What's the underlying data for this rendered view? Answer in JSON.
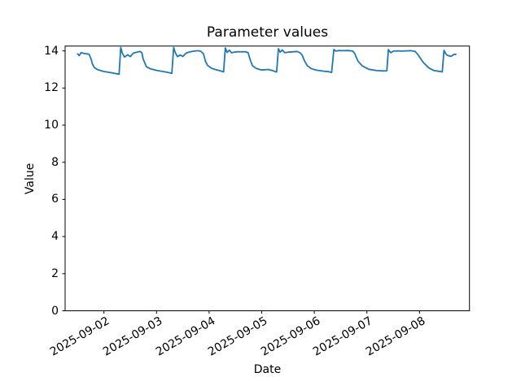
{
  "window": {
    "background": "#ffffff"
  },
  "chart": {
    "title": "Parameter values",
    "xlabel": "Date",
    "ylabel": "Value",
    "line_color": "#1f77b4",
    "axis_color": "#000000"
  },
  "chart_data": {
    "type": "line",
    "title": "Parameter values",
    "xlabel": "Date",
    "ylabel": "Value",
    "ylim": [
      0,
      14.26
    ],
    "y_ticks": [
      0,
      2,
      4,
      6,
      8,
      10,
      12,
      14
    ],
    "grid": false,
    "legend": false,
    "x_axis": {
      "unit": "hours since 2025-09-01 00:00",
      "tick_hours": [
        24,
        48,
        72,
        96,
        120,
        144,
        168
      ],
      "tick_labels": [
        "2025-09-02",
        "2025-09-03",
        "2025-09-04",
        "2025-09-05",
        "2025-09-06",
        "2025-09-07",
        "2025-09-08"
      ]
    },
    "series": [
      {
        "name": "Parameter values",
        "color": "#1f77b4",
        "points": [
          [
            12.0,
            13.84
          ],
          [
            12.7,
            13.75
          ],
          [
            13.6,
            13.91
          ],
          [
            14.6,
            13.87
          ],
          [
            15.8,
            13.85
          ],
          [
            17.2,
            13.82
          ],
          [
            18.0,
            13.6
          ],
          [
            18.8,
            13.28
          ],
          [
            19.6,
            13.1
          ],
          [
            21.0,
            13.0
          ],
          [
            22.5,
            12.94
          ],
          [
            24.0,
            12.89
          ],
          [
            26.0,
            12.85
          ],
          [
            28.0,
            12.81
          ],
          [
            29.7,
            12.77
          ],
          [
            30.9,
            12.75
          ],
          [
            31.65,
            14.18
          ],
          [
            32.4,
            13.88
          ],
          [
            33.4,
            13.67
          ],
          [
            34.9,
            13.79
          ],
          [
            36.0,
            13.69
          ],
          [
            37.5,
            13.89
          ],
          [
            39.0,
            13.93
          ],
          [
            40.5,
            13.97
          ],
          [
            41.3,
            13.9
          ],
          [
            41.9,
            13.55
          ],
          [
            43.4,
            13.15
          ],
          [
            45.3,
            13.03
          ],
          [
            48.0,
            12.95
          ],
          [
            50.9,
            12.89
          ],
          [
            52.7,
            12.85
          ],
          [
            55.0,
            12.79
          ],
          [
            55.8,
            14.18
          ],
          [
            56.6,
            13.9
          ],
          [
            57.6,
            13.69
          ],
          [
            58.8,
            13.78
          ],
          [
            60.0,
            13.7
          ],
          [
            61.5,
            13.88
          ],
          [
            63.0,
            13.94
          ],
          [
            64.6,
            13.98
          ],
          [
            67.0,
            14.01
          ],
          [
            68.3,
            13.97
          ],
          [
            69.4,
            13.85
          ],
          [
            70.3,
            13.45
          ],
          [
            71.3,
            13.22
          ],
          [
            73.2,
            13.06
          ],
          [
            75.0,
            12.99
          ],
          [
            77.0,
            12.93
          ],
          [
            78.6,
            12.87
          ],
          [
            79.4,
            14.16
          ],
          [
            80.2,
            13.92
          ],
          [
            81.2,
            14.04
          ],
          [
            82.2,
            13.9
          ],
          [
            83.5,
            13.93
          ],
          [
            85.0,
            13.96
          ],
          [
            87.0,
            13.95
          ],
          [
            88.5,
            13.96
          ],
          [
            89.8,
            13.9
          ],
          [
            90.8,
            13.5
          ],
          [
            91.8,
            13.2
          ],
          [
            93.5,
            13.05
          ],
          [
            96.0,
            12.97
          ],
          [
            99.0,
            13.0
          ],
          [
            101.4,
            12.92
          ],
          [
            102.8,
            12.86
          ],
          [
            103.6,
            14.12
          ],
          [
            104.4,
            13.93
          ],
          [
            105.4,
            14.05
          ],
          [
            106.5,
            13.9
          ],
          [
            108.0,
            13.93
          ],
          [
            110.0,
            13.95
          ],
          [
            112.0,
            13.97
          ],
          [
            113.5,
            13.9
          ],
          [
            114.5,
            13.76
          ],
          [
            115.5,
            13.47
          ],
          [
            116.8,
            13.2
          ],
          [
            118.5,
            13.05
          ],
          [
            121.0,
            12.96
          ],
          [
            124.0,
            12.91
          ],
          [
            126.5,
            12.88
          ],
          [
            127.9,
            12.84
          ],
          [
            128.9,
            14.07
          ],
          [
            129.8,
            13.99
          ],
          [
            131.0,
            14.02
          ],
          [
            133.0,
            14.01
          ],
          [
            135.5,
            14.02
          ],
          [
            137.5,
            13.99
          ],
          [
            138.3,
            13.89
          ],
          [
            139.9,
            13.45
          ],
          [
            141.9,
            13.19
          ],
          [
            144.9,
            13.01
          ],
          [
            148.6,
            12.94
          ],
          [
            151.5,
            12.92
          ],
          [
            153.1,
            12.93
          ],
          [
            153.8,
            14.07
          ],
          [
            154.9,
            13.9
          ],
          [
            156.2,
            13.99
          ],
          [
            158.0,
            14.0
          ],
          [
            160.0,
            13.99
          ],
          [
            162.0,
            14.0
          ],
          [
            164.0,
            14.01
          ],
          [
            166.0,
            13.97
          ],
          [
            167.3,
            13.8
          ],
          [
            169.8,
            13.37
          ],
          [
            172.3,
            13.08
          ],
          [
            174.7,
            12.94
          ],
          [
            177.0,
            12.9
          ],
          [
            178.4,
            12.87
          ],
          [
            179.2,
            14.03
          ],
          [
            180.3,
            13.79
          ],
          [
            181.5,
            13.73
          ],
          [
            182.5,
            13.71
          ],
          [
            183.5,
            13.8
          ],
          [
            184.6,
            13.82
          ]
        ]
      }
    ]
  }
}
